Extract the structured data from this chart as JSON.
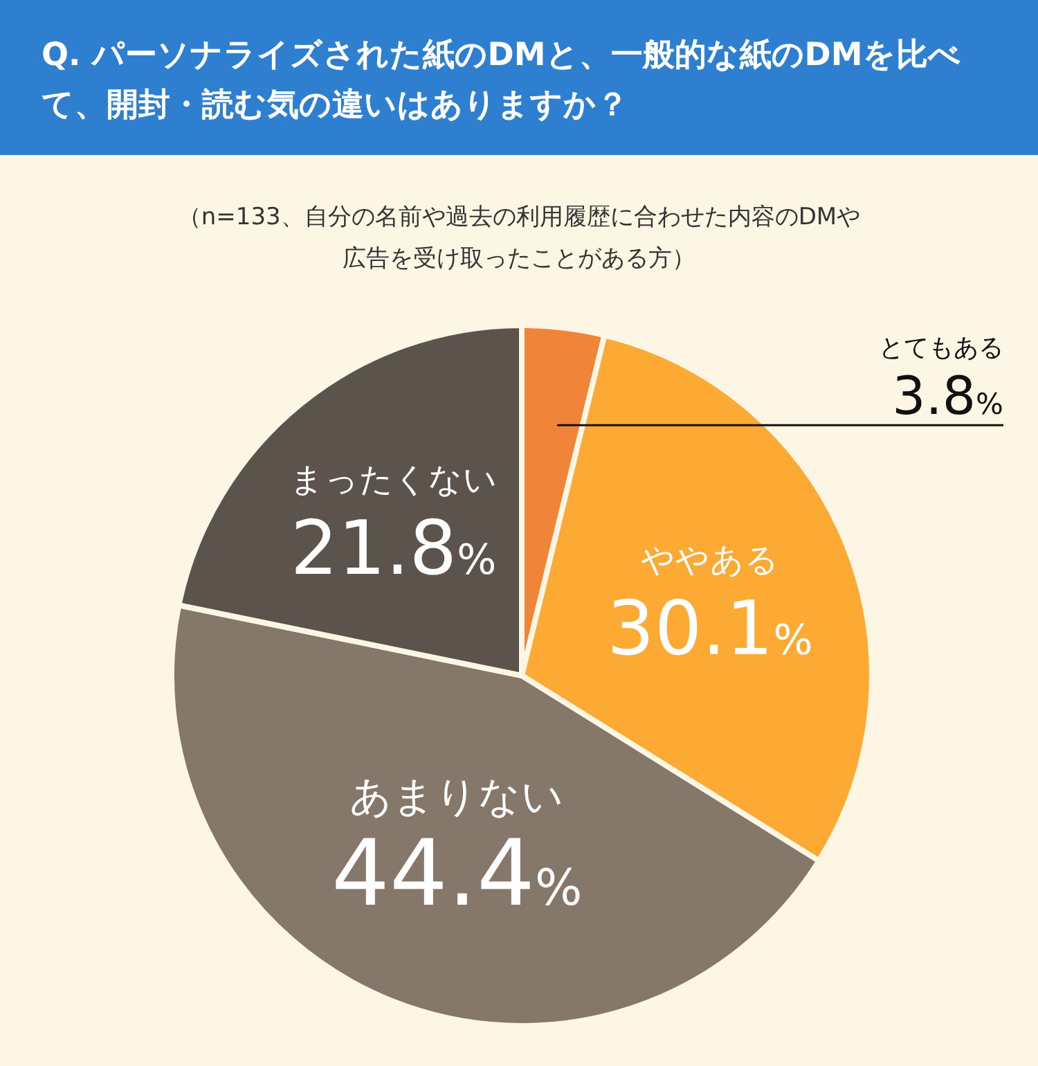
{
  "chart_data": {
    "type": "pie",
    "title": "Q. パーソナライズされた紙のDMと、一般的な紙のDMを比べて、開封・読む気の違いはありますか？",
    "subtitle": "（n=133、自分の名前や過去の利用履歴に合わせた内容のDMや広告を受け取ったことがある方）",
    "categories": [
      "とてもある",
      "ややある",
      "あまりない",
      "まったくない"
    ],
    "values": [
      3.8,
      30.1,
      44.4,
      21.8
    ],
    "colors": [
      "#f08438",
      "#fcaa33",
      "#857769",
      "#5c534c"
    ],
    "value_labels": [
      "3.8%",
      "30.1%",
      "44.4%",
      "21.8%"
    ],
    "legend": false
  }
}
